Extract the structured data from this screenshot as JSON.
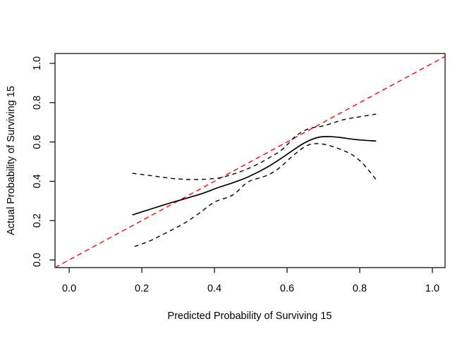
{
  "chart_data": {
    "type": "line",
    "title": "",
    "xlabel": "Predicted Probability of Surviving 15",
    "ylabel": "Actual Probability of Surviving 15",
    "xlim": [
      -0.039,
      1.035
    ],
    "ylim": [
      -0.039,
      1.05
    ],
    "grid": false,
    "legend": "none",
    "colors": {
      "foreground": "#000000",
      "ideal_line": "#ff0000"
    },
    "x_ticks": {
      "values": [
        0.0,
        0.2,
        0.4,
        0.6,
        0.8,
        1.0
      ],
      "labels": [
        "0.0",
        "0.2",
        "0.4",
        "0.6",
        "0.8",
        "1.0"
      ]
    },
    "y_ticks": {
      "values": [
        0.0,
        0.2,
        0.4,
        0.6,
        0.8,
        1.0
      ],
      "labels": [
        "0.0",
        "0.2",
        "0.4",
        "0.6",
        "0.8",
        "1.0"
      ]
    },
    "series": [
      {
        "name": "ideal-line",
        "style": "dashed",
        "color": "#ff0000",
        "x": [
          -0.039,
          1.035
        ],
        "y": [
          -0.039,
          1.035
        ]
      },
      {
        "name": "upper-confidence-band",
        "style": "dashed",
        "color": "#000000",
        "x": [
          0.174,
          0.22,
          0.26,
          0.3,
          0.35,
          0.41,
          0.44,
          0.47,
          0.5,
          0.53,
          0.56,
          0.58,
          0.6,
          0.62,
          0.64,
          0.664,
          0.7,
          0.755,
          0.8,
          0.845
        ],
        "y": [
          0.441,
          0.43,
          0.42,
          0.412,
          0.409,
          0.416,
          0.43,
          0.448,
          0.47,
          0.498,
          0.53,
          0.552,
          0.585,
          0.624,
          0.65,
          0.67,
          0.682,
          0.713,
          0.728,
          0.742
        ]
      },
      {
        "name": "lower-confidence-band",
        "style": "dashed",
        "color": "#000000",
        "x": [
          0.18,
          0.22,
          0.25,
          0.28,
          0.32,
          0.36,
          0.4,
          0.45,
          0.49,
          0.52,
          0.55,
          0.58,
          0.61,
          0.64,
          0.664,
          0.69,
          0.72,
          0.75,
          0.78,
          0.81,
          0.845
        ],
        "y": [
          0.068,
          0.095,
          0.122,
          0.15,
          0.19,
          0.24,
          0.294,
          0.33,
          0.394,
          0.415,
          0.434,
          0.47,
          0.52,
          0.565,
          0.588,
          0.591,
          0.58,
          0.56,
          0.534,
          0.487,
          0.409
        ]
      },
      {
        "name": "calibration-curve",
        "style": "solid",
        "color": "#000000",
        "x": [
          0.174,
          0.22,
          0.27,
          0.32,
          0.37,
          0.41,
          0.45,
          0.49,
          0.52,
          0.55,
          0.58,
          0.61,
          0.64,
          0.664,
          0.69,
          0.72,
          0.75,
          0.79,
          0.845
        ],
        "y": [
          0.229,
          0.256,
          0.285,
          0.312,
          0.34,
          0.368,
          0.392,
          0.42,
          0.447,
          0.477,
          0.512,
          0.55,
          0.587,
          0.61,
          0.625,
          0.627,
          0.622,
          0.612,
          0.605
        ]
      }
    ]
  }
}
